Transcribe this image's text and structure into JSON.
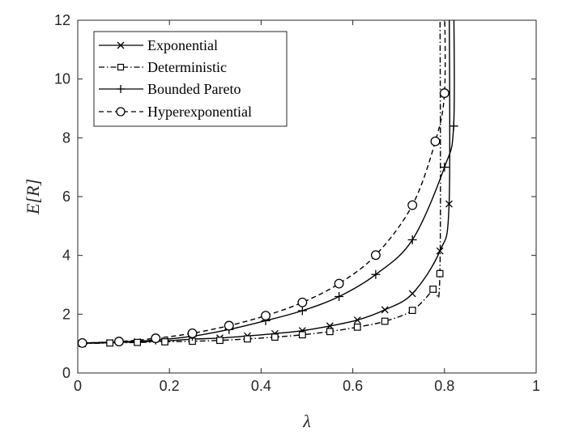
{
  "chart_data": {
    "type": "line",
    "xlabel": "λ",
    "ylabel": "E[R]",
    "xlim": [
      0,
      1
    ],
    "ylim": [
      0,
      12
    ],
    "xticks": [
      "0",
      "0.2",
      "0.4",
      "0.6",
      "0.8",
      "1"
    ],
    "yticks": [
      "0",
      "2",
      "4",
      "6",
      "8",
      "10",
      "12"
    ],
    "legend_position": "top-left",
    "grid": false,
    "series": [
      {
        "name": "Exponential",
        "line_style": "solid",
        "marker": "x",
        "x": [
          0.01,
          0.07,
          0.13,
          0.19,
          0.25,
          0.31,
          0.37,
          0.43,
          0.49,
          0.55,
          0.61,
          0.67,
          0.73,
          0.79,
          0.81
        ],
        "y": [
          1.01,
          1.03,
          1.06,
          1.09,
          1.15,
          1.19,
          1.26,
          1.34,
          1.44,
          1.6,
          1.8,
          2.15,
          2.7,
          4.15,
          5.75
        ]
      },
      {
        "name": "Deterministic",
        "line_style": "dashdot",
        "marker": "square",
        "x": [
          0.01,
          0.07,
          0.13,
          0.19,
          0.25,
          0.31,
          0.37,
          0.43,
          0.49,
          0.55,
          0.61,
          0.67,
          0.73,
          0.775,
          0.79
        ],
        "y": [
          1.0,
          1.02,
          1.04,
          1.06,
          1.08,
          1.11,
          1.16,
          1.22,
          1.3,
          1.41,
          1.56,
          1.76,
          2.13,
          2.85,
          3.38
        ]
      },
      {
        "name": "Bounded Pareto",
        "line_style": "solid",
        "marker": "plus",
        "x": [
          0.01,
          0.09,
          0.17,
          0.25,
          0.33,
          0.41,
          0.49,
          0.57,
          0.65,
          0.73,
          0.8,
          0.82
        ],
        "y": [
          1.02,
          1.06,
          1.12,
          1.25,
          1.48,
          1.78,
          2.12,
          2.6,
          3.35,
          4.53,
          7.0,
          8.4
        ]
      },
      {
        "name": "Hyperexponential",
        "line_style": "dashed",
        "marker": "circle",
        "x": [
          0.01,
          0.09,
          0.17,
          0.25,
          0.33,
          0.41,
          0.49,
          0.57,
          0.65,
          0.73,
          0.78,
          0.8
        ],
        "y": [
          1.02,
          1.07,
          1.18,
          1.35,
          1.61,
          1.95,
          2.4,
          3.04,
          4.01,
          5.71,
          7.88,
          9.52
        ]
      }
    ]
  }
}
